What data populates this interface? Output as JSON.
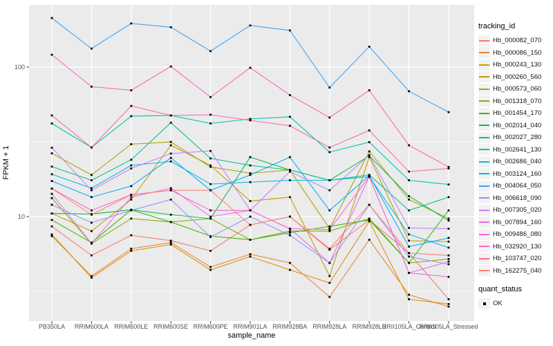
{
  "figure": {
    "panel_bg": "#EBEBEB",
    "grid_color": "#FFFFFF",
    "tick_label_color": "#4D4D4D",
    "point_color": "#000000"
  },
  "axes": {
    "x_title": "sample_name",
    "y_title": "FPKM + 1",
    "y_tick_labels": [
      "100",
      "10"
    ]
  },
  "legend": {
    "color_title": "tracking_id",
    "shape_title": "quant_status",
    "shape_item_label": "OK"
  },
  "chart_data": {
    "type": "line",
    "title": "",
    "xlabel": "sample_name",
    "ylabel": "FPKM + 1",
    "y_scale": "log10",
    "y_major_ticks": [
      100,
      10
    ],
    "y_minor_gridlines": [
      31.6,
      3.16
    ],
    "grid": true,
    "legend_position": "right",
    "point_marker": "black square (quant_status OK)",
    "x_categories": [
      "PB350LA",
      "RRIM600LA",
      "RRIM600LE",
      "RRIM600SE",
      "RRIM600PE",
      "RRIM901LA",
      "RRIM928BA",
      "RRIM928LA",
      "RRIM928LB",
      "RRII105LA_Control",
      "RRII105LA_Stressed"
    ],
    "series": [
      {
        "name": "Hb_000082_070",
        "color": "#F8766D",
        "values": [
          8.6,
          5.5,
          7.5,
          6.9,
          5.9,
          8.8,
          10.0,
          6.0,
          9.5,
          5.7,
          2.8
        ]
      },
      {
        "name": "Hb_000086_150",
        "color": "#EA8331",
        "values": [
          7.4,
          4.0,
          6.1,
          6.7,
          4.6,
          5.6,
          4.9,
          2.9,
          7.0,
          3.0,
          2.5
        ]
      },
      {
        "name": "Hb_000243_130",
        "color": "#D89000",
        "values": [
          7.6,
          3.9,
          5.9,
          6.5,
          4.4,
          5.4,
          4.4,
          3.6,
          9.3,
          2.8,
          2.6
        ]
      },
      {
        "name": "Hb_000260_560",
        "color": "#C09B00",
        "values": [
          10.5,
          8.0,
          13.0,
          30.0,
          22.0,
          12.7,
          13.5,
          4.0,
          25.0,
          6.9,
          6.8
        ]
      },
      {
        "name": "Hb_000573_060",
        "color": "#A3A500",
        "values": [
          26.5,
          19.0,
          30.5,
          31.6,
          21.5,
          19.5,
          20.5,
          8.3,
          27.3,
          13.0,
          9.7
        ]
      },
      {
        "name": "Hb_001318_070",
        "color": "#7CAE00",
        "values": [
          13.3,
          6.6,
          9.7,
          9.2,
          9.7,
          7.0,
          8.0,
          8.0,
          9.7,
          4.9,
          5.2
        ]
      },
      {
        "name": "Hb_001454_170",
        "color": "#39B600",
        "values": [
          9.5,
          6.7,
          11.1,
          9.2,
          7.4,
          7.0,
          7.8,
          8.6,
          9.5,
          4.9,
          11.0
        ]
      },
      {
        "name": "Hb_002014_040",
        "color": "#00BB4E",
        "values": [
          10.5,
          10.4,
          11.1,
          10.3,
          9.7,
          25.0,
          20.5,
          17.5,
          25.5,
          13.7,
          9.4
        ]
      },
      {
        "name": "Hb_002027_280",
        "color": "#00C087",
        "values": [
          21.6,
          17.5,
          24.0,
          42.5,
          24.5,
          22.0,
          20.5,
          17.5,
          19.0,
          11.0,
          13.5
        ]
      },
      {
        "name": "Hb_002641_130",
        "color": "#00C0B8",
        "values": [
          42.0,
          29.0,
          47.0,
          47.5,
          42.0,
          45.0,
          46.5,
          27.0,
          31.5,
          17.5,
          16.4
        ]
      },
      {
        "name": "Hb_002686_040",
        "color": "#00BAE0",
        "values": [
          19.2,
          15.5,
          22.0,
          23.4,
          16.5,
          17.0,
          17.5,
          17.5,
          18.5,
          7.6,
          6.2
        ]
      },
      {
        "name": "Hb_003124_160",
        "color": "#00ACFC",
        "values": [
          17.3,
          13.5,
          16.0,
          24.7,
          15.0,
          19.0,
          25.0,
          11.0,
          18.8,
          6.3,
          7.2
        ]
      },
      {
        "name": "Hb_004064_050",
        "color": "#35A2FF",
        "values": [
          213,
          133,
          196,
          185,
          128,
          190,
          176,
          73,
          137,
          69,
          50
        ]
      },
      {
        "name": "Hb_006618_090",
        "color": "#9590FF",
        "values": [
          12.0,
          9.1,
          11.0,
          13.0,
          7.3,
          10.0,
          7.5,
          4.9,
          12.0,
          5.4,
          4.8
        ]
      },
      {
        "name": "Hb_007305_020",
        "color": "#C77CFF",
        "values": [
          28.9,
          15.0,
          21.0,
          26.4,
          27.5,
          11.0,
          20.0,
          15.0,
          25.8,
          8.4,
          8.3
        ]
      },
      {
        "name": "Hb_007894_160",
        "color": "#E76BF3",
        "values": [
          14.2,
          6.6,
          13.5,
          15.5,
          10.0,
          11.0,
          8.3,
          4.9,
          18.5,
          4.2,
          5.0
        ]
      },
      {
        "name": "Hb_009486_080",
        "color": "#FA62DB",
        "values": [
          15.4,
          11.0,
          14.0,
          15.0,
          11.0,
          11.0,
          8.3,
          8.2,
          18.5,
          4.2,
          3.95
        ]
      },
      {
        "name": "Hb_032920_130",
        "color": "#FF62BC",
        "values": [
          121,
          74,
          70,
          101,
          63,
          99,
          65,
          46,
          70,
          30,
          21.5
        ]
      },
      {
        "name": "Hb_103747_020",
        "color": "#FF6A98",
        "values": [
          47.5,
          29.0,
          55.0,
          47.5,
          48.0,
          44.0,
          40.5,
          29.0,
          37.7,
          20.0,
          21.0
        ]
      },
      {
        "name": "Hb_162275_040",
        "color": "#FF7F6E",
        "values": [
          15.4,
          10.3,
          14.0,
          15.0,
          15.0,
          8.8,
          10.0,
          6.1,
          12.0,
          5.7,
          5.5
        ]
      }
    ]
  }
}
